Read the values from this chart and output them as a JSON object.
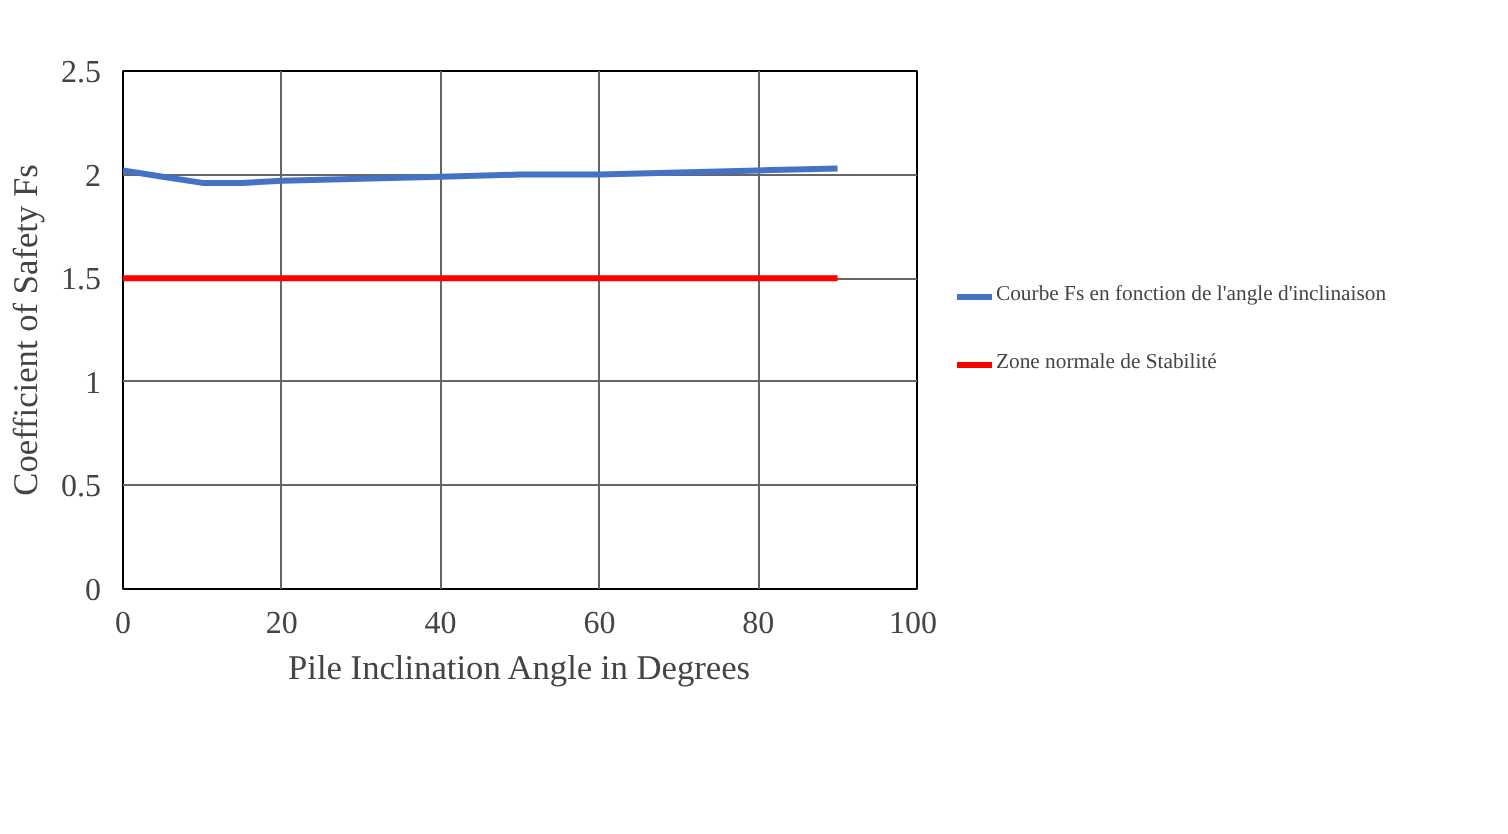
{
  "chart_data": {
    "type": "line",
    "xlabel": "Pile Inclination Angle in Degrees",
    "ylabel": "Coefficient of Safety Fs",
    "xlim": [
      0,
      100
    ],
    "xticks": [
      0,
      20,
      40,
      60,
      80,
      100
    ],
    "ylim": [
      0,
      2.5
    ],
    "yticks": [
      0,
      0.5,
      1,
      1.5,
      2,
      2.5
    ],
    "grid": true,
    "legend": "right",
    "line_style": "solid",
    "marker": "none",
    "series": [
      {
        "name": "Courbe Fs en fonction de l'angle d'inclinaison",
        "color": "#4472c4",
        "x": [
          0,
          5,
          10,
          15,
          20,
          30,
          40,
          50,
          60,
          70,
          80,
          90
        ],
        "values": [
          2.02,
          1.99,
          1.96,
          1.96,
          1.97,
          1.98,
          1.99,
          2.0,
          2.0,
          2.01,
          2.02,
          2.03
        ]
      },
      {
        "name": "Zone normale de Stabilité",
        "color": "#ff0000",
        "x": [
          0,
          90
        ],
        "values": [
          1.5,
          1.5
        ]
      }
    ]
  }
}
